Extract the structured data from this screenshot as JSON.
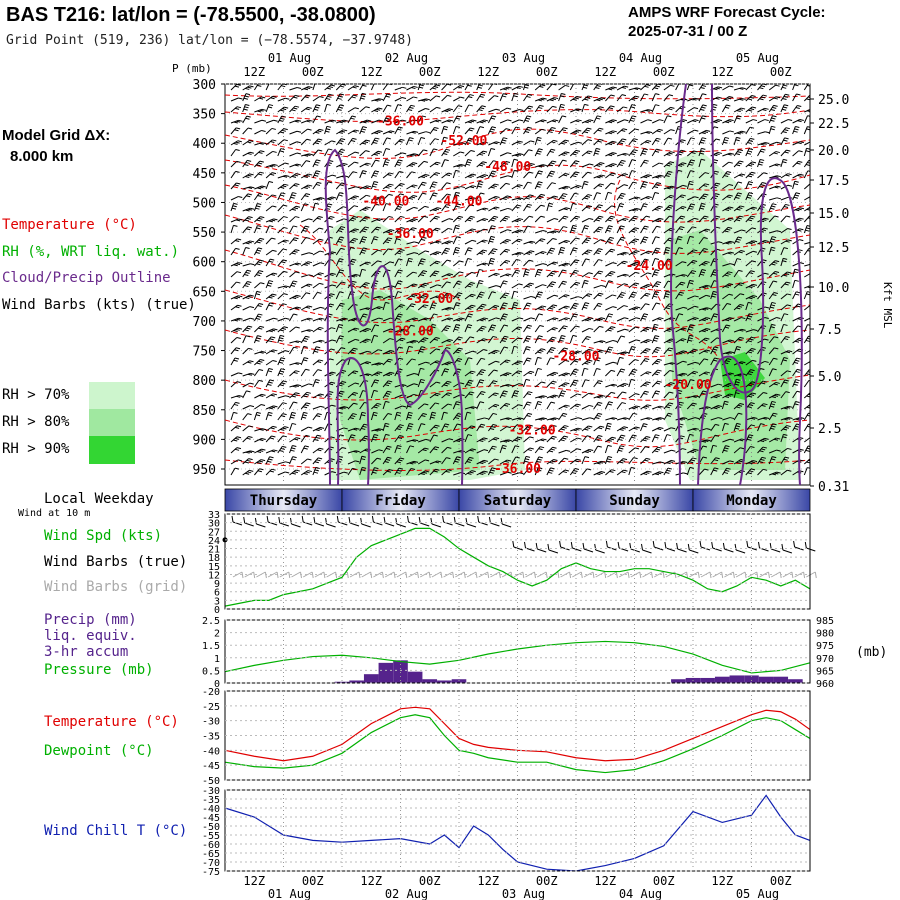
{
  "header": {
    "title": "BAS T216:  lat/lon = (-78.5500, -38.0800)",
    "grid_point": "Grid Point (519, 236) lat/lon = (−78.5574, −37.9748)",
    "cycle_line1": "AMPS WRF Forecast Cycle:",
    "cycle_line2": "2025-07-31 / 00  Z"
  },
  "side_legend": {
    "model_grid": "Model Grid ΔX:",
    "model_dx": "8.000 km",
    "temperature": "Temperature (°C)",
    "rh": "RH (%, WRT liq. wat.)",
    "cloud": "Cloud/Precip Outline",
    "wind_barbs": "Wind Barbs (kts) (true)",
    "rh70": "RH > 70%",
    "rh80": "RH > 80%",
    "rh90": "RH > 90%",
    "local_weekday": "Local Weekday",
    "wind_at": "Wind at 10 m",
    "wind_spd": "Wind Spd (kts)",
    "wind_barbs_true": "Wind Barbs (true)",
    "wind_barbs_grid": "Wind Barbs (grid)",
    "precip1": "Precip (mm)",
    "precip2": "liq. equiv.",
    "precip3": "3-hr accum",
    "pressure": "Pressure (mb)",
    "temp2": "Temperature (°C)",
    "dewpoint": "Dewpoint (°C)",
    "windchill": "Wind Chill T (°C)",
    "pressure_unit": "(mb)",
    "kft": "Kft MSL",
    "p_mb": "P (mb)"
  },
  "colors": {
    "temp": "#e00000",
    "rh": "#00b000",
    "cloud": "#6a2a8c",
    "grid_barb": "#aaaaaa",
    "precip": "#55238c",
    "windchill": "#1020b0",
    "rh70": "#cdf5cd",
    "rh80": "#a0e8a0",
    "rh90": "#33d633"
  },
  "chart_data": [
    {
      "type": "heatmap",
      "name": "time-height cross section",
      "time_hours": [
        0,
        120
      ],
      "top_time_labels": [
        "12Z",
        "00Z",
        "12Z",
        "00Z",
        "12Z",
        "00Z",
        "12Z",
        "00Z",
        "12Z",
        "00Z"
      ],
      "top_date_labels": [
        "01 Aug",
        "02 Aug",
        "03 Aug",
        "04 Aug",
        "05 Aug"
      ],
      "pressure_ticks": [
        "300",
        "350",
        "400",
        "450",
        "500",
        "550",
        "600",
        "650",
        "700",
        "750",
        "800",
        "850",
        "900",
        "950"
      ],
      "height_ticks": [
        "25.0",
        "22.5",
        "20.0",
        "17.5",
        "15.0",
        "12.5",
        "10.0",
        "7.5",
        "5.0",
        "2.5",
        "0.31"
      ],
      "temp_labels": [
        {
          "t": 36,
          "p": 363,
          "text": "-36.00"
        },
        {
          "t": 49,
          "p": 396,
          "text": "-52.00"
        },
        {
          "t": 58,
          "p": 440,
          "text": "-48.00"
        },
        {
          "t": 33,
          "p": 498,
          "text": "-40.00"
        },
        {
          "t": 48,
          "p": 498,
          "text": "-44.00"
        },
        {
          "t": 38,
          "p": 553,
          "text": "-36.00"
        },
        {
          "t": 87,
          "p": 607,
          "text": "-24.00"
        },
        {
          "t": 42,
          "p": 663,
          "text": "-32.00"
        },
        {
          "t": 38,
          "p": 718,
          "text": "-28.00"
        },
        {
          "t": 72,
          "p": 760,
          "text": "-28.00"
        },
        {
          "t": 95,
          "p": 808,
          "text": "-20.00"
        },
        {
          "t": 63,
          "p": 885,
          "text": "-32.00"
        },
        {
          "t": 60,
          "p": 950,
          "text": "-36.00"
        }
      ]
    },
    {
      "type": "line",
      "name": "wind speed",
      "x_hours": [
        0,
        3,
        6,
        9,
        12,
        15,
        18,
        21,
        24,
        27,
        30,
        33,
        36,
        39,
        42,
        45,
        48,
        51,
        54,
        57,
        60,
        63,
        66,
        69,
        72,
        75,
        78,
        81,
        84,
        87,
        90,
        93,
        96,
        99,
        102,
        105,
        108,
        111,
        114,
        117,
        120
      ],
      "values": [
        1,
        2,
        3,
        3,
        5,
        6,
        7,
        9,
        11,
        18,
        22,
        24,
        26,
        28,
        28,
        25,
        21,
        18,
        15,
        13,
        10,
        8,
        10,
        14,
        16,
        14,
        13,
        13,
        14,
        14,
        13,
        12,
        10,
        7,
        6,
        8,
        11,
        10,
        8,
        10,
        7
      ],
      "ylim": [
        0,
        33
      ],
      "yticks": [
        "0",
        "3",
        "6",
        "9",
        "12",
        "15",
        "18",
        "21",
        "24",
        "27",
        "30",
        "33"
      ],
      "barbs_true_hours_start": 57
    },
    {
      "type": "bar",
      "name": "precip + pressure",
      "precip_hours": [
        24,
        27,
        30,
        33,
        36,
        39,
        42,
        45,
        48,
        93,
        96,
        99,
        102,
        105,
        108,
        111,
        114,
        117
      ],
      "precip_mm": [
        0.05,
        0.1,
        0.35,
        0.8,
        0.9,
        0.45,
        0.15,
        0.1,
        0.15,
        0.15,
        0.2,
        0.2,
        0.25,
        0.3,
        0.3,
        0.25,
        0.25,
        0.15
      ],
      "pressure_hours": [
        0,
        6,
        12,
        18,
        24,
        30,
        36,
        42,
        48,
        54,
        60,
        66,
        72,
        78,
        84,
        90,
        96,
        102,
        108,
        114,
        120
      ],
      "pressure_mb": [
        964.5,
        967,
        969,
        970.5,
        971,
        970,
        968.5,
        967.5,
        969,
        971.5,
        973.5,
        975,
        976,
        976.5,
        976,
        974.5,
        971.5,
        967,
        964,
        965,
        968
      ],
      "precip_ylim": [
        0,
        2.5
      ],
      "pressure_ylim": [
        960,
        985
      ],
      "precip_ticks": [
        "0",
        "0.5",
        "1",
        "1.5",
        "2",
        "2.5"
      ],
      "pressure_ticks": [
        "960",
        "965",
        "970",
        "975",
        "980",
        "985"
      ]
    },
    {
      "type": "line",
      "name": "temperature and dewpoint",
      "x_hours": [
        0,
        6,
        12,
        18,
        24,
        30,
        36,
        39,
        42,
        45,
        48,
        51,
        54,
        60,
        66,
        72,
        78,
        84,
        90,
        96,
        102,
        108,
        111,
        114,
        117,
        120
      ],
      "temperature": [
        -40,
        -42,
        -43.5,
        -42,
        -38,
        -31,
        -26,
        -25.5,
        -26,
        -31,
        -36,
        -38,
        -39,
        -40,
        -40.5,
        -42.5,
        -43.5,
        -43,
        -40,
        -36,
        -32,
        -28,
        -26.5,
        -27,
        -29.5,
        -33
      ],
      "dewpoint": [
        -44,
        -45.5,
        -46,
        -45,
        -41,
        -34,
        -29,
        -28,
        -29,
        -35,
        -40,
        -41,
        -42.5,
        -44,
        -44,
        -46.5,
        -47.5,
        -46.5,
        -43.5,
        -39.5,
        -35,
        -30,
        -29,
        -30,
        -33,
        -36
      ],
      "ylim": [
        -50,
        -20
      ],
      "yticks": [
        "-50",
        "-45",
        "-40",
        "-35",
        "-30",
        "-25",
        "-20"
      ]
    },
    {
      "type": "line",
      "name": "wind chill",
      "x_hours": [
        0,
        6,
        12,
        18,
        24,
        30,
        36,
        42,
        45,
        48,
        51,
        54,
        57,
        60,
        66,
        72,
        78,
        84,
        90,
        96,
        102,
        108,
        111,
        114,
        117,
        120
      ],
      "values": [
        -40,
        -45,
        -55,
        -58,
        -59,
        -58,
        -57,
        -60,
        -55,
        -62,
        -50,
        -55,
        -63,
        -70,
        -74,
        -75,
        -72,
        -68,
        -61,
        -42,
        -48,
        -44,
        -33,
        -45,
        -55,
        -58
      ],
      "ylim": [
        -75,
        -30
      ],
      "yticks": [
        "-75",
        "-70",
        "-65",
        "-60",
        "-55",
        "-50",
        "-45",
        "-40",
        "-35",
        "-30"
      ]
    },
    {
      "type": "table",
      "name": "weekday bar",
      "days": [
        "Thursday",
        "Friday",
        "Saturday",
        "Sunday",
        "Monday"
      ]
    }
  ]
}
